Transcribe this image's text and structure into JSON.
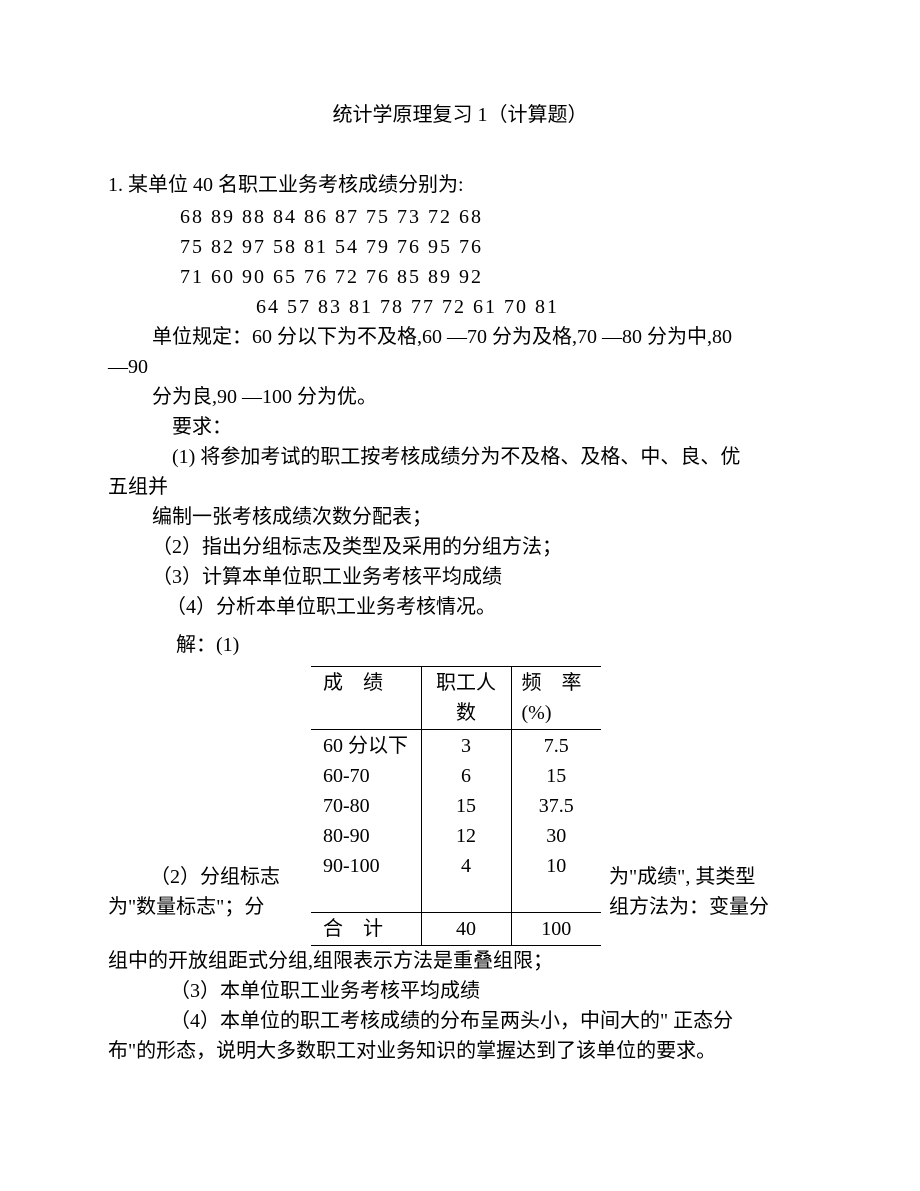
{
  "title": "统计学原理复习 1（计算题）",
  "problem": {
    "stem": "1.  某单位 40 名职工业务考核成绩分别为:",
    "rows": [
      "68 89 88 84 86 87 75 73 72 68",
      "75 82 97 58 81 54 79 76 95 76",
      "71 60 90 65 76 72 76 85 89 92",
      "64 57 83 81 78 77 72 61 70 81"
    ],
    "rule1": "单位规定：60 分以下为不及格,60 —70 分为及格,70 —80 分为中,80",
    "rule1b": "—90",
    "rule2": "分为良,90 —100 分为优。",
    "req_label": "要求：",
    "req1a": "(1) 将参加考试的职工按考核成绩分为不及格、及格、中、良、优",
    "req1b": "五组并",
    "req1c": "编制一张考核成绩次数分配表；",
    "req2": "（2）指出分组标志及类型及采用的分组方法；",
    "req3": "（3）计算本单位职工业务考核平均成绩",
    "req4": "（4）分析本单位职工业务考核情况。"
  },
  "solution": {
    "label": "解：(1)",
    "table": {
      "headers": {
        "c1a": "成",
        "c1b": "绩",
        "c2": "职工人数",
        "c3": "频　率(%)"
      },
      "ranges": [
        "60 分以下",
        "60-70",
        "70-80",
        "80-90",
        "90-100"
      ],
      "counts": [
        "3",
        "6",
        "15",
        "12",
        "4"
      ],
      "freqs": [
        "7.5",
        "15",
        "37.5",
        "30",
        "10"
      ],
      "total_label": "合　计",
      "total_count": "40",
      "total_freq": "100"
    },
    "ans2_left": "（2）分组标志",
    "ans2_right": "为\"成绩\", 其类型",
    "ans2b_left": "为\"数量标志\"；分",
    "ans2b_right": "组方法为：变量分",
    "ans2c": "组中的开放组距式分组,组限表示方法是重叠组限；",
    "ans3": "（3）本单位职工业务考核平均成绩",
    "ans4a": "（4）本单位的职工考核成绩的分布呈两头小，中间大的\" 正态分",
    "ans4b": "布\"的形态，说明大多数职工对业务知识的掌握达到了该单位的要求。"
  }
}
